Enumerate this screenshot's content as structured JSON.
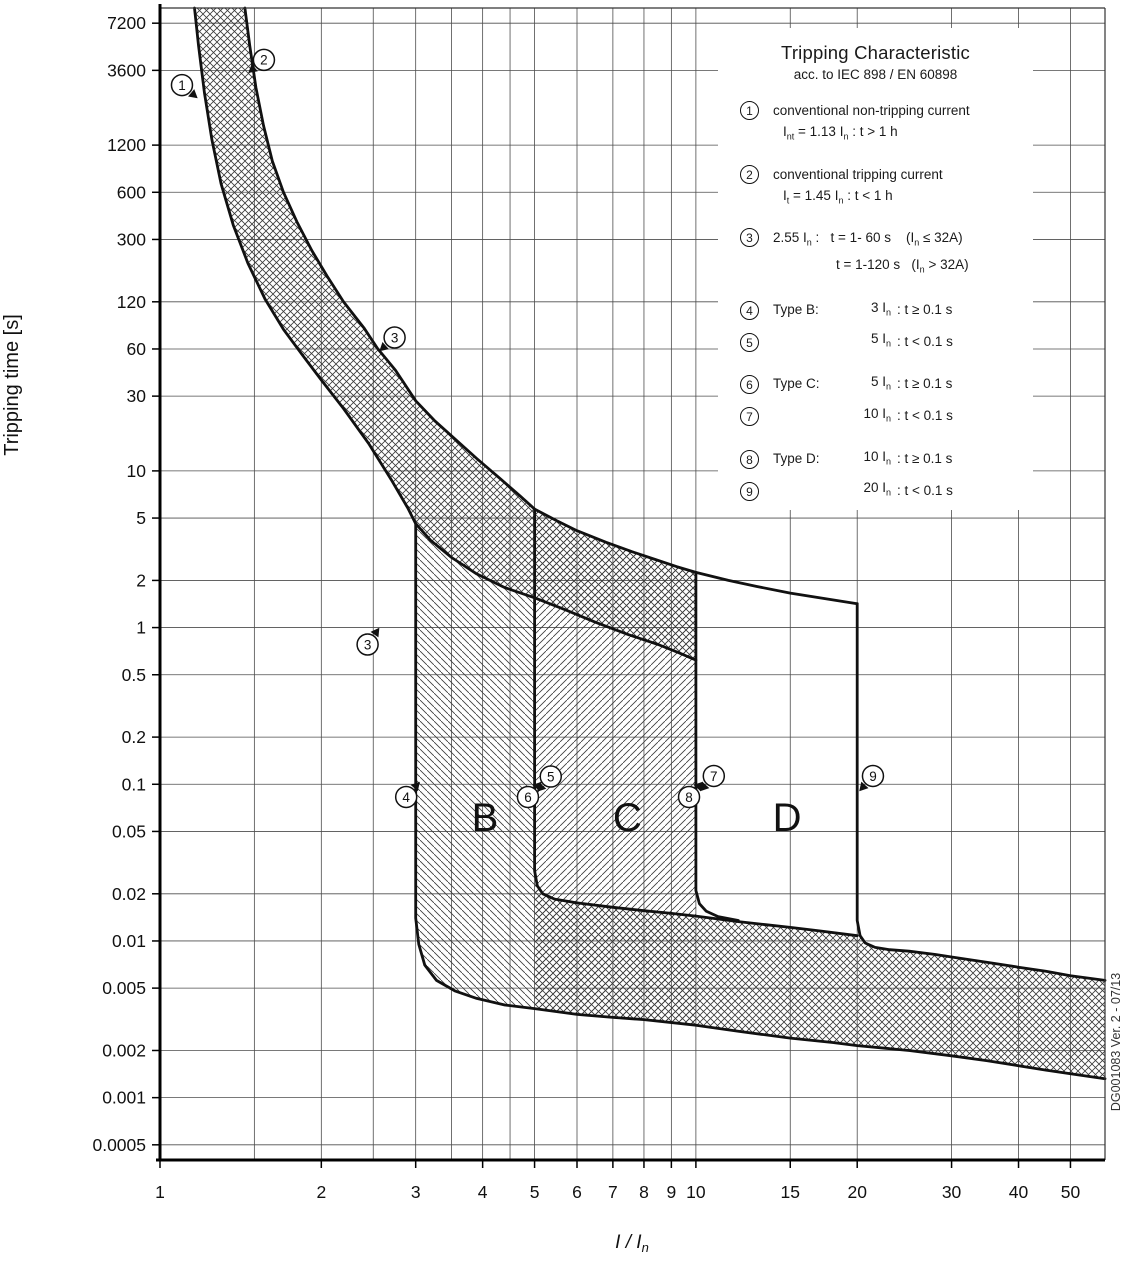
{
  "colors": {
    "background": "#ffffff",
    "ink": "#111111",
    "grid": "#4d4d4d",
    "hatch": "#3a3a3a"
  },
  "legend": {
    "title": "Tripping Characteristic",
    "subtitle": "acc. to IEC 898 / EN 60898",
    "items": [
      {
        "num": "1",
        "gap": true,
        "indent2": 10,
        "lines": [
          "conventional non-tripping current",
          "I~nt~ = 1.13 I~n~ :  t > 1 h"
        ]
      },
      {
        "num": "2",
        "gap": true,
        "indent2": 10,
        "lines": [
          "conventional tripping current",
          "I~t~ = 1.45 I~n~ :  t < 1 h"
        ]
      },
      {
        "num": "3",
        "gap": true,
        "indent2": 63,
        "lines": [
          "2.55 I~n~ :   t = 1- 60 s    (I~n~ ≤ 32A)",
          "t = 1-120 s   (I~n~ > 32A)"
        ]
      },
      {
        "num": "4",
        "gap": true,
        "label": "Type B:",
        "value": "3 I~n~",
        "cond": ": t ≥ 0.1 s"
      },
      {
        "num": "5",
        "gap": false,
        "label": "",
        "value": "5 I~n~",
        "cond": ": t < 0.1 s"
      },
      {
        "num": "6",
        "gap": true,
        "label": "Type C:",
        "value": "5 I~n~",
        "cond": ": t ≥ 0.1 s"
      },
      {
        "num": "7",
        "gap": false,
        "label": "",
        "value": "10 I~n~",
        "cond": ": t < 0.1 s"
      },
      {
        "num": "8",
        "gap": true,
        "label": "Type D:",
        "value": "10 I~n~",
        "cond": ": t ≥ 0.1 s"
      },
      {
        "num": "9",
        "gap": false,
        "label": "",
        "value": "20 I~n~",
        "cond": ": t < 0.1 s"
      }
    ]
  },
  "chart_data": {
    "type": "line",
    "title": "Tripping Characteristic",
    "subtitle": "acc. to IEC 898 / EN 60898",
    "xlabel": "I / I~n~",
    "ylabel": "Tripping time [s]",
    "x_scale": "log",
    "y_scale": "log",
    "x_range": [
      1,
      58
    ],
    "y_range": [
      0.0004,
      9000
    ],
    "x_tick_labels": [
      "1",
      "2",
      "3",
      "4",
      "5",
      "6",
      "7",
      "8",
      "9",
      "10",
      "15",
      "20",
      "30",
      "40",
      "50"
    ],
    "x_gridlines": [
      1,
      1.5,
      2,
      2.5,
      3,
      3.5,
      4,
      4.5,
      5,
      6,
      7,
      8,
      9,
      10,
      15,
      20,
      30,
      40,
      50
    ],
    "y_tick_labels": [
      "7200",
      "3600",
      "1200",
      "600",
      "300",
      "120",
      "60",
      "30",
      "10",
      "5",
      "2",
      "1",
      "0.5",
      "0.2",
      "0.1",
      "0.05",
      "0.02",
      "0.01",
      "0.005",
      "0.002",
      "0.001",
      "0.0005"
    ],
    "watermark": "DG001083 Ver. 2 - 07/13",
    "region_labels": [
      {
        "text": "B",
        "x": 4.04,
        "t": 0.062
      },
      {
        "text": "C",
        "x": 7.45,
        "t": 0.062
      },
      {
        "text": "D",
        "x": 14.8,
        "t": 0.062
      }
    ],
    "markers": [
      {
        "n": "1",
        "x": 1.099,
        "t": 2900,
        "a": -40
      },
      {
        "n": "2",
        "x": 1.563,
        "t": 4200,
        "a": 220
      },
      {
        "n": "3",
        "x": 2.74,
        "t": 71,
        "a": 222
      },
      {
        "n": "3",
        "x": 2.44,
        "t": 0.78,
        "a": 55
      },
      {
        "n": "4",
        "x": 2.88,
        "t": 0.083,
        "a": 48
      },
      {
        "n": "5",
        "x": 5.36,
        "t": 0.112,
        "a": 228
      },
      {
        "n": "6",
        "x": 4.86,
        "t": 0.083,
        "a": 48
      },
      {
        "n": "7",
        "x": 10.8,
        "t": 0.113,
        "a": 228
      },
      {
        "n": "8",
        "x": 9.71,
        "t": 0.083,
        "a": 48
      },
      {
        "n": "9",
        "x": 21.4,
        "t": 0.113,
        "a": 228
      }
    ],
    "curves": {
      "fast": [
        [
          1.16,
          9000
        ],
        [
          1.18,
          5200
        ],
        [
          1.21,
          2600
        ],
        [
          1.25,
          1300
        ],
        [
          1.3,
          680
        ],
        [
          1.37,
          370
        ],
        [
          1.46,
          210
        ],
        [
          1.57,
          125
        ],
        [
          1.7,
          80
        ],
        [
          1.85,
          54
        ],
        [
          2.0,
          38
        ],
        [
          2.2,
          25
        ],
        [
          2.45,
          15
        ],
        [
          2.7,
          8.8
        ],
        [
          2.9,
          5.8
        ],
        [
          3.0,
          4.6
        ],
        [
          3.2,
          3.6
        ],
        [
          3.5,
          2.8
        ],
        [
          3.9,
          2.2
        ],
        [
          4.4,
          1.8
        ],
        [
          5.0,
          1.55
        ],
        [
          5.7,
          1.3
        ],
        [
          6.5,
          1.08
        ],
        [
          7.5,
          0.9
        ],
        [
          8.5,
          0.78
        ],
        [
          9.3,
          0.69
        ],
        [
          10.0,
          0.62
        ]
      ],
      "slow": [
        [
          1.44,
          9000
        ],
        [
          1.47,
          5200
        ],
        [
          1.51,
          2800
        ],
        [
          1.56,
          1600
        ],
        [
          1.62,
          950
        ],
        [
          1.7,
          600
        ],
        [
          1.8,
          390
        ],
        [
          1.92,
          255
        ],
        [
          2.05,
          175
        ],
        [
          2.2,
          120
        ],
        [
          2.4,
          82
        ],
        [
          2.55,
          60
        ],
        [
          2.75,
          44
        ],
        [
          3.0,
          28
        ],
        [
          3.25,
          21
        ],
        [
          3.55,
          16
        ],
        [
          3.9,
          12
        ],
        [
          4.3,
          9.0
        ],
        [
          4.7,
          6.9
        ],
        [
          5.0,
          5.7
        ],
        [
          5.5,
          4.8
        ],
        [
          6.0,
          4.15
        ],
        [
          6.8,
          3.5
        ],
        [
          7.6,
          3.05
        ],
        [
          8.4,
          2.72
        ],
        [
          9.2,
          2.45
        ],
        [
          10.0,
          2.25
        ]
      ],
      "d_top": [
        [
          10.0,
          2.25
        ],
        [
          11.5,
          2.0
        ],
        [
          13,
          1.83
        ],
        [
          15,
          1.66
        ],
        [
          17,
          1.55
        ],
        [
          20,
          1.42
        ]
      ],
      "x3_lower": [
        [
          3,
          4.6
        ],
        [
          3,
          0.014
        ],
        [
          3.04,
          0.0095
        ],
        [
          3.12,
          0.007
        ],
        [
          3.28,
          0.0056
        ],
        [
          3.55,
          0.0048
        ],
        [
          3.9,
          0.0043
        ],
        [
          4.4,
          0.0039
        ],
        [
          5,
          0.0037
        ],
        [
          6,
          0.0034
        ],
        [
          7,
          0.00325
        ],
        [
          8,
          0.00315
        ],
        [
          10,
          0.0029
        ],
        [
          12,
          0.00265
        ],
        [
          15,
          0.0024
        ],
        [
          18,
          0.00225
        ],
        [
          20,
          0.00215
        ],
        [
          25,
          0.002
        ],
        [
          30,
          0.00185
        ],
        [
          35,
          0.00172
        ],
        [
          40,
          0.0016
        ],
        [
          45,
          0.0015
        ],
        [
          50,
          0.00142
        ],
        [
          58,
          0.00132
        ]
      ],
      "x5_step": [
        [
          5,
          5.7
        ],
        [
          5,
          0.028
        ],
        [
          5.06,
          0.0225
        ],
        [
          5.18,
          0.02
        ],
        [
          5.45,
          0.0185
        ],
        [
          6.0,
          0.0175
        ],
        [
          7,
          0.0164
        ],
        [
          8,
          0.0156
        ],
        [
          9,
          0.015
        ],
        [
          10,
          0.0144
        ],
        [
          11,
          0.0138
        ],
        [
          12,
          0.0133
        ],
        [
          13.5,
          0.0127
        ],
        [
          15,
          0.0122
        ],
        [
          17,
          0.0116
        ],
        [
          20,
          0.0108
        ]
      ],
      "x10_step": [
        [
          10,
          2.25
        ],
        [
          10,
          0.021
        ],
        [
          10.15,
          0.0173
        ],
        [
          10.45,
          0.0155
        ],
        [
          11.0,
          0.0143
        ],
        [
          12.0,
          0.0135
        ]
      ],
      "x20_step": [
        [
          20,
          1.42
        ],
        [
          20,
          0.0135
        ],
        [
          20.25,
          0.0108
        ],
        [
          20.7,
          0.0097
        ],
        [
          21.6,
          0.0091
        ],
        [
          23,
          0.0088
        ],
        [
          25,
          0.0086
        ],
        [
          28,
          0.0082
        ],
        [
          30,
          0.0079
        ],
        [
          35,
          0.0073
        ],
        [
          40,
          0.0068
        ],
        [
          45,
          0.0064
        ],
        [
          50,
          0.006
        ],
        [
          58,
          0.0056
        ]
      ]
    },
    "regions": {
      "b_zone": [
        [
          3,
          4.6
        ],
        [
          3.2,
          3.6
        ],
        [
          3.5,
          2.8
        ],
        [
          3.9,
          2.2
        ],
        [
          4.4,
          1.8
        ],
        [
          5,
          1.55
        ],
        [
          5,
          0.0037
        ],
        [
          4.4,
          0.0039
        ],
        [
          3.9,
          0.0043
        ],
        [
          3.55,
          0.0048
        ],
        [
          3.28,
          0.0056
        ],
        [
          3.12,
          0.007
        ],
        [
          3.04,
          0.0095
        ],
        [
          3,
          0.014
        ]
      ],
      "c_zone": [
        [
          5,
          5.7
        ],
        [
          5.5,
          4.8
        ],
        [
          6,
          4.15
        ],
        [
          6.8,
          3.5
        ],
        [
          7.6,
          3.05
        ],
        [
          8.4,
          2.72
        ],
        [
          9.2,
          2.45
        ],
        [
          10,
          2.25
        ],
        [
          10,
          0.0029
        ],
        [
          8,
          0.00315
        ],
        [
          7,
          0.00325
        ],
        [
          6,
          0.0034
        ],
        [
          5,
          0.0037
        ]
      ],
      "mag_band_upper": [
        [
          5,
          0.028
        ],
        [
          5.06,
          0.0225
        ],
        [
          5.18,
          0.02
        ],
        [
          5.45,
          0.0185
        ],
        [
          6.0,
          0.0175
        ],
        [
          7,
          0.0164
        ],
        [
          8,
          0.0156
        ],
        [
          9,
          0.015
        ],
        [
          10,
          0.0144
        ],
        [
          11,
          0.0138
        ],
        [
          12,
          0.0133
        ],
        [
          13.5,
          0.0127
        ],
        [
          15,
          0.0122
        ],
        [
          17,
          0.0116
        ],
        [
          20,
          0.0108
        ],
        [
          21.6,
          0.0091
        ],
        [
          23,
          0.0088
        ],
        [
          25,
          0.0086
        ],
        [
          28,
          0.0082
        ],
        [
          30,
          0.0079
        ],
        [
          35,
          0.0073
        ],
        [
          40,
          0.0068
        ],
        [
          45,
          0.0064
        ],
        [
          50,
          0.006
        ],
        [
          58,
          0.0056
        ]
      ],
      "mag_band_lower": [
        [
          5,
          0.0037
        ],
        [
          6,
          0.0034
        ],
        [
          7,
          0.00325
        ],
        [
          8,
          0.00315
        ],
        [
          10,
          0.0029
        ],
        [
          12,
          0.00265
        ],
        [
          15,
          0.0024
        ],
        [
          18,
          0.00225
        ],
        [
          20,
          0.00215
        ],
        [
          25,
          0.002
        ],
        [
          30,
          0.00185
        ],
        [
          35,
          0.00172
        ],
        [
          40,
          0.0016
        ],
        [
          45,
          0.0015
        ],
        [
          50,
          0.00142
        ],
        [
          58,
          0.00132
        ]
      ]
    }
  }
}
